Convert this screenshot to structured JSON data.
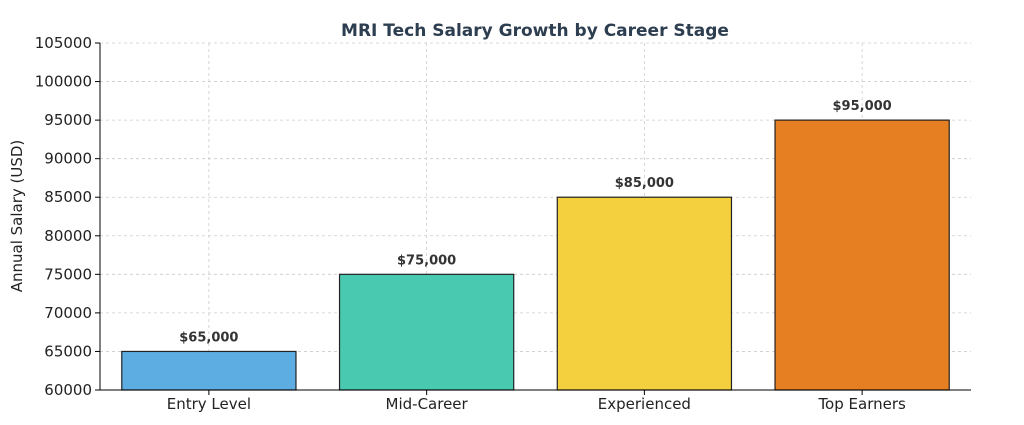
{
  "chart_data": {
    "type": "bar",
    "title": "MRI Tech Salary Growth by Career Stage",
    "xlabel": "",
    "ylabel": "Annual Salary (USD)",
    "ylim": [
      60000,
      105000
    ],
    "yticks": [
      60000,
      65000,
      70000,
      75000,
      80000,
      85000,
      90000,
      95000,
      100000,
      105000
    ],
    "categories": [
      "Entry Level",
      "Mid-Career",
      "Experienced",
      "Top Earners"
    ],
    "values": [
      65000,
      75000,
      85000,
      95000
    ],
    "data_labels": [
      "$65,000",
      "$75,000",
      "$85,000",
      "$95,000"
    ],
    "bar_colors": [
      "#5DADE2",
      "#48C9B0",
      "#F4D03F",
      "#E67E22"
    ],
    "title_color": "#2C3E50",
    "grid": true
  }
}
